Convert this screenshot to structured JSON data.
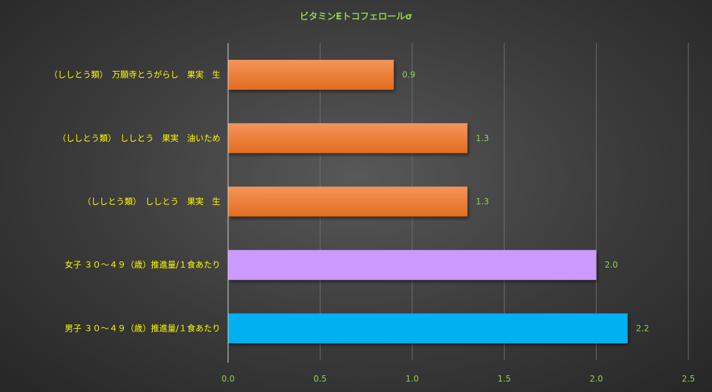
{
  "chart_data": {
    "type": "bar",
    "orientation": "horizontal",
    "title": "ビタミンEトコフェロールσ",
    "categories": [
      "（ししとう類）　万願寺とうがらし　果実　生",
      "（ししとう類）　ししとう　果実　油いため",
      "（ししとう類）　ししとう　果実　生",
      "女子 ３０～４９（歳）推進量/１食あたり",
      "男子 ３０～４９（歳）推進量/１食あたり"
    ],
    "values": [
      0.9,
      1.3,
      1.3,
      2.0,
      2.17
    ],
    "value_labels": [
      "0.9",
      "1.3",
      "1.3",
      "2.0",
      "2.2"
    ],
    "x_ticks": [
      "0.0",
      "0.5",
      "1.0",
      "1.5",
      "2.0",
      "2.5"
    ],
    "xlim": [
      0,
      2.5
    ],
    "grid": true,
    "legend": "none",
    "colors": {
      "food": "#ed7d31",
      "female": "#cc99ff",
      "male": "#00b0f0",
      "title": "#92d050",
      "category_label": "#ffff00",
      "tick_label": "#92d050",
      "value_label": "#92d050",
      "grid": "#6e6e6e"
    },
    "bar_color_keys": [
      "food",
      "food",
      "food",
      "female",
      "male"
    ]
  }
}
